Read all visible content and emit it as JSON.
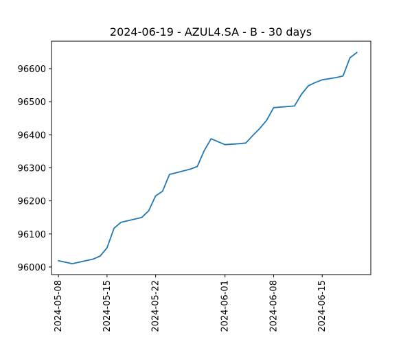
{
  "chart_data": {
    "type": "line",
    "title": "2024-06-19 - AZUL4.SA - B - 30 days",
    "xlabel": "",
    "ylabel": "",
    "grid": false,
    "x_axis_type": "date",
    "xlim": [
      "2024-05-07",
      "2024-06-22"
    ],
    "ylim": [
      95977,
      96683
    ],
    "x_ticks": [
      "2024-05-08",
      "2024-05-15",
      "2024-05-22",
      "2024-06-01",
      "2024-06-08",
      "2024-06-15"
    ],
    "y_ticks": [
      96000,
      96100,
      96200,
      96300,
      96400,
      96500,
      96600
    ],
    "series": [
      {
        "color": "#1f77b4",
        "points": [
          {
            "x": "2024-05-08",
            "y": 96019
          },
          {
            "x": "2024-05-10",
            "y": 96010
          },
          {
            "x": "2024-05-13",
            "y": 96024
          },
          {
            "x": "2024-05-14",
            "y": 96033
          },
          {
            "x": "2024-05-15",
            "y": 96058
          },
          {
            "x": "2024-05-16",
            "y": 96117
          },
          {
            "x": "2024-05-17",
            "y": 96135
          },
          {
            "x": "2024-05-20",
            "y": 96150
          },
          {
            "x": "2024-05-21",
            "y": 96170
          },
          {
            "x": "2024-05-22",
            "y": 96215
          },
          {
            "x": "2024-05-23",
            "y": 96229
          },
          {
            "x": "2024-05-24",
            "y": 96280
          },
          {
            "x": "2024-05-27",
            "y": 96296
          },
          {
            "x": "2024-05-28",
            "y": 96304
          },
          {
            "x": "2024-05-29",
            "y": 96352
          },
          {
            "x": "2024-05-30",
            "y": 96388
          },
          {
            "x": "2024-05-31",
            "y": 96379
          },
          {
            "x": "2024-06-01",
            "y": 96370
          },
          {
            "x": "2024-06-03",
            "y": 96373
          },
          {
            "x": "2024-06-04",
            "y": 96375
          },
          {
            "x": "2024-06-05",
            "y": 96398
          },
          {
            "x": "2024-06-06",
            "y": 96419
          },
          {
            "x": "2024-06-07",
            "y": 96444
          },
          {
            "x": "2024-06-08",
            "y": 96482
          },
          {
            "x": "2024-06-11",
            "y": 96487
          },
          {
            "x": "2024-06-12",
            "y": 96522
          },
          {
            "x": "2024-06-13",
            "y": 96548
          },
          {
            "x": "2024-06-14",
            "y": 96558
          },
          {
            "x": "2024-06-15",
            "y": 96566
          },
          {
            "x": "2024-06-17",
            "y": 96573
          },
          {
            "x": "2024-06-18",
            "y": 96578
          },
          {
            "x": "2024-06-19",
            "y": 96633
          },
          {
            "x": "2024-06-20",
            "y": 96649
          }
        ]
      }
    ]
  }
}
